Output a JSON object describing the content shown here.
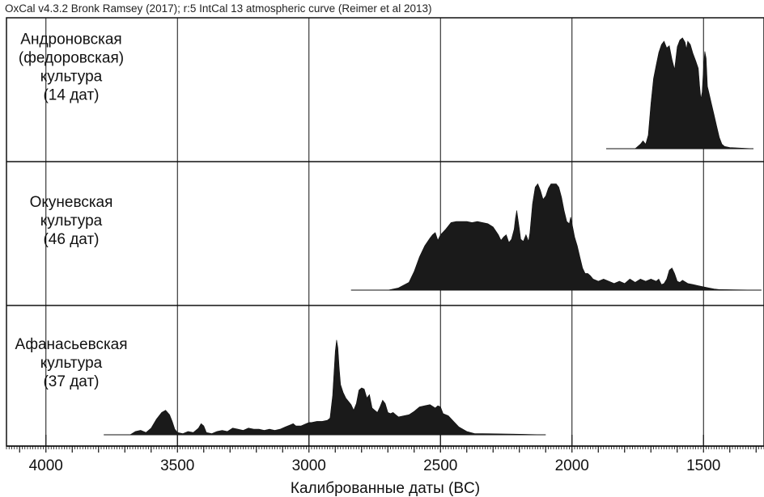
{
  "header": "OxCal v4.3.2 Bronk Ramsey (2017); r:5 IntCal 13 atmospheric curve (Reimer et al 2013)",
  "chart_data": {
    "type": "area",
    "x_unit": "cal BC (years)",
    "xlim": [
      4150,
      1270
    ],
    "x_reversed": true,
    "xticks": [
      4000,
      3500,
      3000,
      2500,
      2000,
      1500
    ],
    "xlabel": "Калиброванные даты (BC)",
    "grid": true,
    "series": [
      {
        "name": "Андроновская (федоровская) культура (14 дат)",
        "label_lines": [
          "Андроновская",
          "(федоровская)",
          "культура",
          "(14 дат)"
        ],
        "fill": "#1a1a1a",
        "points": [
          [
            1870,
            0
          ],
          [
            1760,
            0
          ],
          [
            1740,
            0.04
          ],
          [
            1730,
            0.07
          ],
          [
            1720,
            0.04
          ],
          [
            1710,
            0.12
          ],
          [
            1700,
            0.4
          ],
          [
            1690,
            0.62
          ],
          [
            1680,
            0.74
          ],
          [
            1670,
            0.85
          ],
          [
            1660,
            0.92
          ],
          [
            1650,
            0.95
          ],
          [
            1640,
            0.89
          ],
          [
            1630,
            0.91
          ],
          [
            1620,
            0.79
          ],
          [
            1610,
            0.7
          ],
          [
            1600,
            0.9
          ],
          [
            1590,
            0.96
          ],
          [
            1580,
            0.98
          ],
          [
            1570,
            0.94
          ],
          [
            1565,
            0.88
          ],
          [
            1560,
            0.95
          ],
          [
            1550,
            0.92
          ],
          [
            1540,
            0.84
          ],
          [
            1530,
            0.78
          ],
          [
            1520,
            0.71
          ],
          [
            1515,
            0.56
          ],
          [
            1510,
            0.44
          ],
          [
            1505,
            0.5
          ],
          [
            1500,
            0.72
          ],
          [
            1495,
            0.86
          ],
          [
            1490,
            0.8
          ],
          [
            1485,
            0.55
          ],
          [
            1480,
            0.5
          ],
          [
            1470,
            0.4
          ],
          [
            1460,
            0.3
          ],
          [
            1450,
            0.2
          ],
          [
            1440,
            0.1
          ],
          [
            1430,
            0.04
          ],
          [
            1420,
            0.02
          ],
          [
            1400,
            0.01
          ],
          [
            1310,
            0
          ]
        ]
      },
      {
        "name": "Окуневская культура (46 дат)",
        "label_lines": [
          "Окуневская",
          "культура",
          "(46 дат)"
        ],
        "fill": "#1a1a1a",
        "points": [
          [
            2840,
            0
          ],
          [
            2700,
            0
          ],
          [
            2660,
            0.02
          ],
          [
            2620,
            0.07
          ],
          [
            2600,
            0.17
          ],
          [
            2580,
            0.3
          ],
          [
            2560,
            0.4
          ],
          [
            2540,
            0.47
          ],
          [
            2530,
            0.5
          ],
          [
            2520,
            0.52
          ],
          [
            2510,
            0.45
          ],
          [
            2500,
            0.5
          ],
          [
            2480,
            0.55
          ],
          [
            2460,
            0.61
          ],
          [
            2440,
            0.62
          ],
          [
            2420,
            0.62
          ],
          [
            2400,
            0.62
          ],
          [
            2380,
            0.61
          ],
          [
            2360,
            0.62
          ],
          [
            2340,
            0.61
          ],
          [
            2320,
            0.6
          ],
          [
            2300,
            0.57
          ],
          [
            2280,
            0.5
          ],
          [
            2270,
            0.45
          ],
          [
            2260,
            0.48
          ],
          [
            2250,
            0.5
          ],
          [
            2240,
            0.43
          ],
          [
            2230,
            0.46
          ],
          [
            2220,
            0.55
          ],
          [
            2215,
            0.65
          ],
          [
            2210,
            0.72
          ],
          [
            2200,
            0.55
          ],
          [
            2195,
            0.46
          ],
          [
            2185,
            0.44
          ],
          [
            2175,
            0.5
          ],
          [
            2165,
            0.44
          ],
          [
            2160,
            0.52
          ],
          [
            2150,
            0.78
          ],
          [
            2140,
            0.93
          ],
          [
            2130,
            0.96
          ],
          [
            2120,
            0.9
          ],
          [
            2110,
            0.82
          ],
          [
            2100,
            0.85
          ],
          [
            2090,
            0.92
          ],
          [
            2080,
            0.96
          ],
          [
            2060,
            0.96
          ],
          [
            2050,
            0.93
          ],
          [
            2040,
            0.84
          ],
          [
            2030,
            0.72
          ],
          [
            2020,
            0.62
          ],
          [
            2010,
            0.6
          ],
          [
            2005,
            0.66
          ],
          [
            2000,
            0.6
          ],
          [
            1990,
            0.48
          ],
          [
            1980,
            0.4
          ],
          [
            1970,
            0.3
          ],
          [
            1960,
            0.2
          ],
          [
            1950,
            0.15
          ],
          [
            1940,
            0.15
          ],
          [
            1930,
            0.13
          ],
          [
            1920,
            0.1
          ],
          [
            1900,
            0.08
          ],
          [
            1880,
            0.1
          ],
          [
            1860,
            0.08
          ],
          [
            1840,
            0.06
          ],
          [
            1820,
            0.08
          ],
          [
            1800,
            0.06
          ],
          [
            1780,
            0.1
          ],
          [
            1760,
            0.07
          ],
          [
            1740,
            0.1
          ],
          [
            1720,
            0.08
          ],
          [
            1700,
            0.1
          ],
          [
            1680,
            0.08
          ],
          [
            1670,
            0.1
          ],
          [
            1660,
            0.05
          ],
          [
            1650,
            0.06
          ],
          [
            1640,
            0.1
          ],
          [
            1630,
            0.18
          ],
          [
            1620,
            0.2
          ],
          [
            1610,
            0.15
          ],
          [
            1600,
            0.08
          ],
          [
            1590,
            0.07
          ],
          [
            1580,
            0.09
          ],
          [
            1560,
            0.06
          ],
          [
            1540,
            0.05
          ],
          [
            1520,
            0.04
          ],
          [
            1500,
            0.03
          ],
          [
            1480,
            0.02
          ],
          [
            1460,
            0.01
          ],
          [
            1440,
            0.005
          ],
          [
            1280,
            0
          ]
        ]
      },
      {
        "name": "Афанасьевская культура (37 дат)",
        "label_lines": [
          "Афанасьевская",
          "культура",
          "(37 дат)"
        ],
        "fill": "#1a1a1a",
        "points": [
          [
            3780,
            0
          ],
          [
            3680,
            0
          ],
          [
            3660,
            0.03
          ],
          [
            3640,
            0.04
          ],
          [
            3620,
            0.02
          ],
          [
            3600,
            0.06
          ],
          [
            3580,
            0.14
          ],
          [
            3560,
            0.2
          ],
          [
            3545,
            0.22
          ],
          [
            3530,
            0.18
          ],
          [
            3520,
            0.12
          ],
          [
            3510,
            0.05
          ],
          [
            3500,
            0.02
          ],
          [
            3480,
            0.01
          ],
          [
            3460,
            0.03
          ],
          [
            3440,
            0.02
          ],
          [
            3420,
            0.06
          ],
          [
            3410,
            0.1
          ],
          [
            3400,
            0.08
          ],
          [
            3390,
            0.02
          ],
          [
            3370,
            0.01
          ],
          [
            3350,
            0.03
          ],
          [
            3330,
            0.04
          ],
          [
            3310,
            0.03
          ],
          [
            3290,
            0.06
          ],
          [
            3270,
            0.05
          ],
          [
            3250,
            0.04
          ],
          [
            3230,
            0.06
          ],
          [
            3210,
            0.05
          ],
          [
            3190,
            0.05
          ],
          [
            3170,
            0.04
          ],
          [
            3150,
            0.05
          ],
          [
            3130,
            0.04
          ],
          [
            3110,
            0.05
          ],
          [
            3090,
            0.07
          ],
          [
            3070,
            0.09
          ],
          [
            3060,
            0.1
          ],
          [
            3050,
            0.08
          ],
          [
            3030,
            0.08
          ],
          [
            3010,
            0.1
          ],
          [
            3000,
            0.11
          ],
          [
            2990,
            0.11
          ],
          [
            2970,
            0.12
          ],
          [
            2950,
            0.12
          ],
          [
            2930,
            0.13
          ],
          [
            2920,
            0.15
          ],
          [
            2910,
            0.35
          ],
          [
            2900,
            0.75
          ],
          [
            2895,
            0.85
          ],
          [
            2890,
            0.78
          ],
          [
            2885,
            0.6
          ],
          [
            2880,
            0.45
          ],
          [
            2870,
            0.38
          ],
          [
            2860,
            0.33
          ],
          [
            2840,
            0.27
          ],
          [
            2830,
            0.22
          ],
          [
            2820,
            0.28
          ],
          [
            2810,
            0.4
          ],
          [
            2800,
            0.42
          ],
          [
            2790,
            0.41
          ],
          [
            2780,
            0.33
          ],
          [
            2770,
            0.36
          ],
          [
            2760,
            0.24
          ],
          [
            2750,
            0.22
          ],
          [
            2740,
            0.2
          ],
          [
            2730,
            0.25
          ],
          [
            2720,
            0.31
          ],
          [
            2710,
            0.28
          ],
          [
            2700,
            0.2
          ],
          [
            2690,
            0.19
          ],
          [
            2680,
            0.2
          ],
          [
            2670,
            0.18
          ],
          [
            2660,
            0.16
          ],
          [
            2640,
            0.17
          ],
          [
            2620,
            0.18
          ],
          [
            2600,
            0.21
          ],
          [
            2580,
            0.25
          ],
          [
            2560,
            0.26
          ],
          [
            2540,
            0.27
          ],
          [
            2520,
            0.24
          ],
          [
            2510,
            0.26
          ],
          [
            2500,
            0.25
          ],
          [
            2490,
            0.19
          ],
          [
            2470,
            0.17
          ],
          [
            2450,
            0.12
          ],
          [
            2430,
            0.07
          ],
          [
            2400,
            0.03
          ],
          [
            2370,
            0.01
          ],
          [
            2340,
            0.01
          ],
          [
            2200,
            0.005
          ],
          [
            2100,
            0
          ]
        ]
      }
    ]
  }
}
